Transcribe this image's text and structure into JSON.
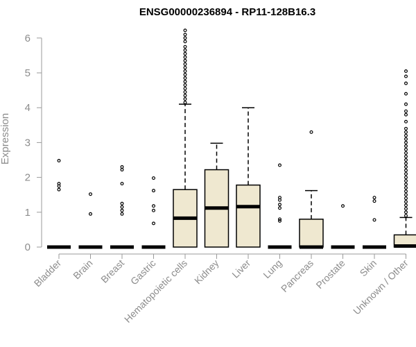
{
  "chart_data": {
    "type": "boxplot",
    "title": "ENSG00000236894 - RP11-128B16.3",
    "ylabel": "Expression",
    "xlabel": "",
    "ylim": [
      0,
      6.2
    ],
    "yticks": [
      0,
      1,
      2,
      3,
      4,
      5,
      6
    ],
    "box_fill": "#efe8d0",
    "box_stroke": "#000000",
    "categories": [
      "Bladder",
      "Brain",
      "Breast",
      "Gastric",
      "Hematopoietic cells",
      "Kidney",
      "Liver",
      "Lung",
      "Pancreas",
      "Prostate",
      "Skin",
      "Unknown / Other"
    ],
    "boxes": [
      {
        "q1": 0,
        "median": 0,
        "q3": 0,
        "whisker_low": 0,
        "whisker_high": 0,
        "outliers": [
          1.65,
          1.75,
          1.82,
          2.48
        ]
      },
      {
        "q1": 0,
        "median": 0,
        "q3": 0,
        "whisker_low": 0,
        "whisker_high": 0,
        "outliers": [
          0.95,
          1.52
        ]
      },
      {
        "q1": 0,
        "median": 0,
        "q3": 0,
        "whisker_low": 0,
        "whisker_high": 0,
        "outliers": [
          0.95,
          1.05,
          1.15,
          1.25,
          1.82,
          2.22,
          2.3
        ]
      },
      {
        "q1": 0,
        "median": 0,
        "q3": 0,
        "whisker_low": 0,
        "whisker_high": 0,
        "outliers": [
          0.68,
          1.05,
          1.18,
          1.62,
          1.98
        ]
      },
      {
        "q1": 0,
        "median": 0.83,
        "q3": 1.65,
        "whisker_low": 0,
        "whisker_high": 4.1,
        "outliers": [
          4.15,
          4.25,
          4.35,
          4.45,
          4.55,
          4.65,
          4.75,
          4.85,
          4.95,
          5.05,
          5.15,
          5.25,
          5.35,
          5.45,
          5.55,
          5.65,
          5.75,
          5.9,
          6.0,
          6.1,
          6.22
        ]
      },
      {
        "q1": 0,
        "median": 1.12,
        "q3": 2.22,
        "whisker_low": 0,
        "whisker_high": 2.98,
        "outliers": []
      },
      {
        "q1": 0,
        "median": 1.16,
        "q3": 1.78,
        "whisker_low": 0,
        "whisker_high": 4.0,
        "outliers": []
      },
      {
        "q1": 0,
        "median": 0,
        "q3": 0,
        "whisker_low": 0,
        "whisker_high": 0,
        "outliers": [
          0.75,
          0.8,
          1.12,
          1.22,
          1.35,
          1.42,
          2.35
        ]
      },
      {
        "q1": 0,
        "median": 0,
        "q3": 0.8,
        "whisker_low": 0,
        "whisker_high": 1.62,
        "outliers": [
          3.3
        ]
      },
      {
        "q1": 0,
        "median": 0,
        "q3": 0,
        "whisker_low": 0,
        "whisker_high": 0,
        "outliers": [
          1.18
        ]
      },
      {
        "q1": 0,
        "median": 0,
        "q3": 0,
        "whisker_low": 0,
        "whisker_high": 0,
        "outliers": [
          0.78,
          1.32,
          1.42
        ]
      },
      {
        "q1": 0,
        "median": 0.03,
        "q3": 0.35,
        "whisker_low": 0,
        "whisker_high": 0.85,
        "outliers": [
          0.9,
          1.0,
          1.1,
          1.2,
          1.3,
          1.4,
          1.5,
          1.6,
          1.7,
          1.8,
          1.9,
          2.0,
          2.1,
          2.2,
          2.3,
          2.4,
          2.5,
          2.6,
          2.7,
          2.8,
          2.9,
          3.0,
          3.1,
          3.2,
          3.3,
          3.4,
          3.6,
          3.8,
          3.9,
          4.1,
          4.4,
          4.7,
          4.9,
          5.05
        ]
      }
    ]
  }
}
